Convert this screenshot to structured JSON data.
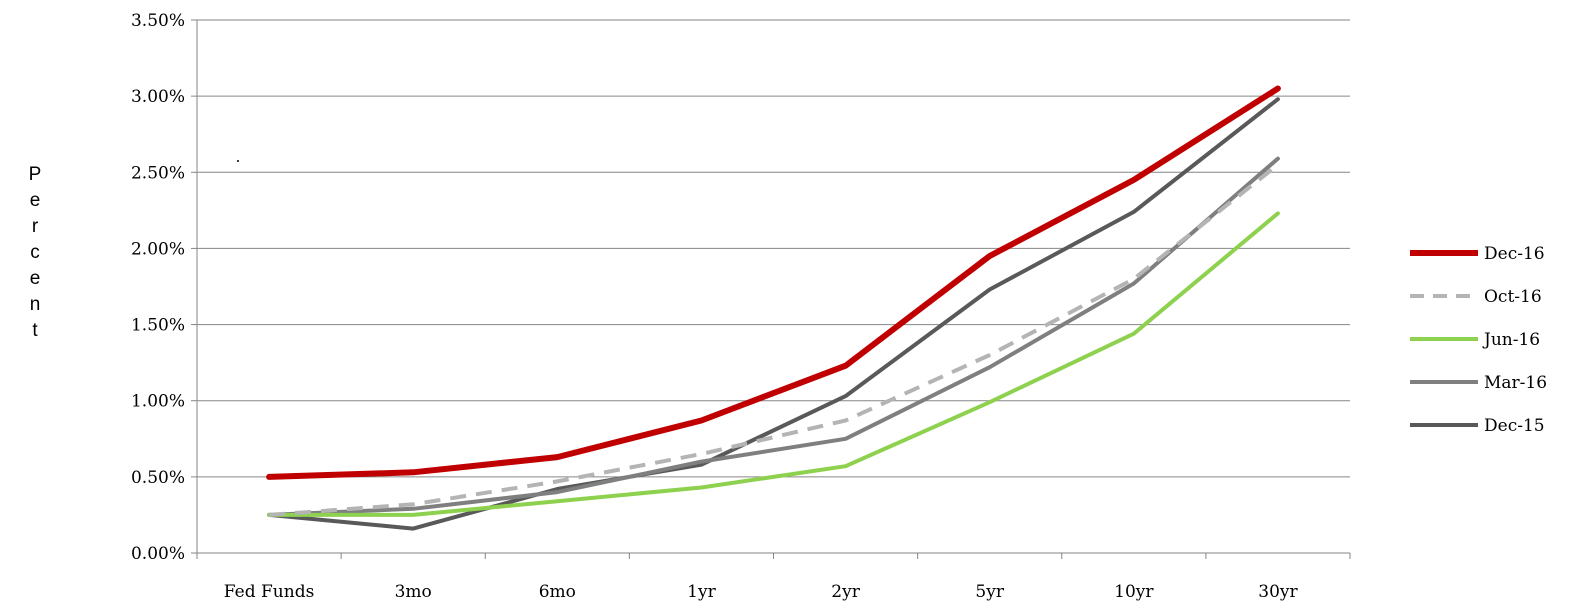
{
  "chart_data": {
    "type": "line",
    "title": "",
    "xlabel": "",
    "ylabel": "Percent",
    "ylim": [
      0,
      3.5
    ],
    "yticks": [
      "0.00%",
      "0.50%",
      "1.00%",
      "1.50%",
      "2.00%",
      "2.50%",
      "3.00%",
      "3.50%"
    ],
    "categories": [
      "Fed Funds",
      "3mo",
      "6mo",
      "1yr",
      "2yr",
      "5yr",
      "10yr",
      "30yr"
    ],
    "grid": true,
    "legend_position": "right",
    "series": [
      {
        "name": "Dec-16",
        "color": "#c00000",
        "style": "solid",
        "width": 6,
        "values": [
          0.5,
          0.53,
          0.63,
          0.87,
          1.23,
          1.95,
          2.45,
          3.05
        ]
      },
      {
        "name": "Oct-16",
        "color": "#b4b4b4",
        "style": "dashed",
        "width": 4,
        "values": [
          0.25,
          0.32,
          0.47,
          0.65,
          0.87,
          1.3,
          1.8,
          2.55
        ]
      },
      {
        "name": "Jun-16",
        "color": "#8ed14e",
        "style": "solid",
        "width": 4,
        "values": [
          0.25,
          0.25,
          0.34,
          0.43,
          0.57,
          0.99,
          1.44,
          2.23
        ]
      },
      {
        "name": "Mar-16",
        "color": "#7f7f7f",
        "style": "solid",
        "width": 4,
        "values": [
          0.25,
          0.29,
          0.4,
          0.6,
          0.75,
          1.22,
          1.77,
          2.59
        ]
      },
      {
        "name": "Dec-15",
        "color": "#595959",
        "style": "solid",
        "width": 4,
        "values": [
          0.25,
          0.16,
          0.42,
          0.58,
          1.03,
          1.73,
          2.24,
          2.98
        ]
      }
    ]
  }
}
